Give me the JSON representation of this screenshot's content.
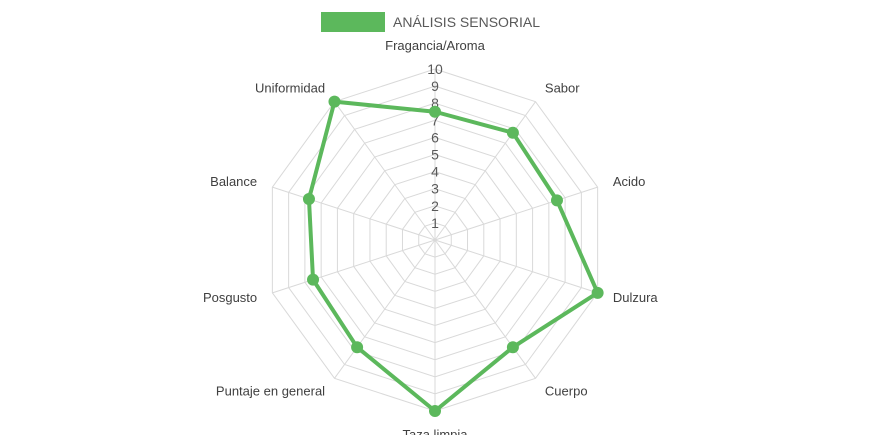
{
  "chart_data": {
    "type": "radar",
    "categories": [
      "Fragancia/Aroma",
      "Sabor",
      "Acido",
      "Dulzura",
      "Cuerpo",
      "Taza limpia",
      "Puntaje en general",
      "Posgusto",
      "Balance",
      "Uniformidad"
    ],
    "series": [
      {
        "name": "ANÁLISIS SENSORIAL",
        "values": [
          7.5,
          7.75,
          7.5,
          10,
          7.75,
          10,
          7.75,
          7.5,
          7.75,
          10
        ]
      }
    ],
    "rlim": [
      0,
      10
    ],
    "ticks": [
      1,
      2,
      3,
      4,
      5,
      6,
      7,
      8,
      9,
      10
    ],
    "legend_position": "top",
    "grid": true,
    "colors": {
      "series": "#5cb85c",
      "grid": "#d9d9d9",
      "text": "#404040"
    }
  }
}
